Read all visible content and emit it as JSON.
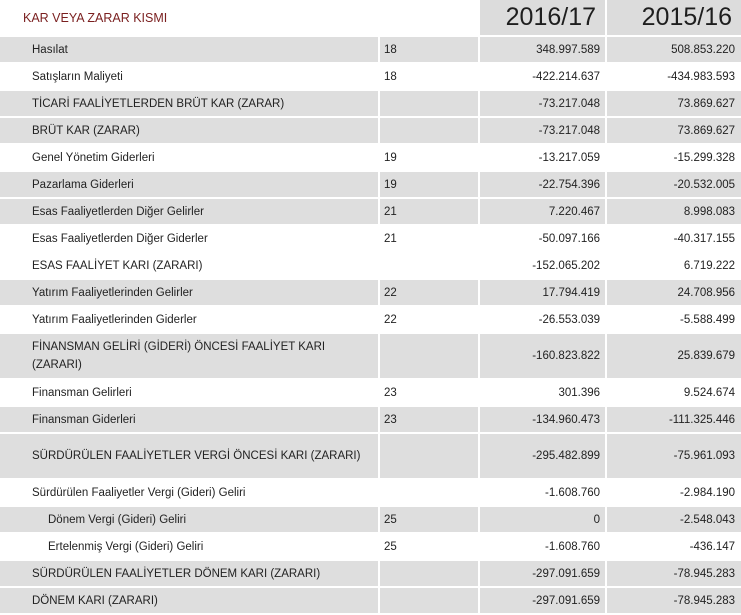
{
  "title": "KAR VEYA ZARAR KISMI",
  "columns": [
    "2016/17",
    "2015/16"
  ],
  "rows": [
    {
      "label": "Hasılat",
      "note": "18",
      "v2016": "348.997.589",
      "v2015": "508.853.220"
    },
    {
      "label": "Satışların Maliyeti",
      "note": "18",
      "v2016": "-422.214.637",
      "v2015": "-434.983.593"
    },
    {
      "label": "TİCARİ FAALİYETLERDEN BRÜT KAR (ZARAR)",
      "note": "",
      "v2016": "-73.217.048",
      "v2015": "73.869.627"
    },
    {
      "label": "BRÜT KAR (ZARAR)",
      "note": "",
      "v2016": "-73.217.048",
      "v2015": "73.869.627"
    },
    {
      "label": "Genel Yönetim Giderleri",
      "note": "19",
      "v2016": "-13.217.059",
      "v2015": "-15.299.328"
    },
    {
      "label": "Pazarlama Giderleri",
      "note": "19",
      "v2016": "-22.754.396",
      "v2015": "-20.532.005"
    },
    {
      "label": "Esas Faaliyetlerden Diğer Gelirler",
      "note": "21",
      "v2016": "7.220.467",
      "v2015": "8.998.083"
    },
    {
      "label": "Esas Faaliyetlerden Diğer Giderler",
      "note": "21",
      "v2016": "-50.097.166",
      "v2015": "-40.317.155"
    },
    {
      "label": "ESAS FAALİYET KARI (ZARARI)",
      "note": "",
      "v2016": "-152.065.202",
      "v2015": "6.719.222"
    },
    {
      "label": "Yatırım Faaliyetlerinden Gelirler",
      "note": "22",
      "v2016": "17.794.419",
      "v2015": "24.708.956"
    },
    {
      "label": "Yatırım Faaliyetlerinden Giderler",
      "note": "22",
      "v2016": "-26.553.039",
      "v2015": "-5.588.499"
    },
    {
      "label": "FİNANSMAN GELİRİ (GİDERİ) ÖNCESİ FAALİYET KARI (ZARARI)",
      "note": "",
      "v2016": "-160.823.822",
      "v2015": "25.839.679"
    },
    {
      "label": "Finansman Gelirleri",
      "note": "23",
      "v2016": "301.396",
      "v2015": "9.524.674"
    },
    {
      "label": "Finansman Giderleri",
      "note": "23",
      "v2016": "-134.960.473",
      "v2015": "-111.325.446"
    },
    {
      "label": "SÜRDÜRÜLEN FAALİYETLER VERGİ ÖNCESİ KARI (ZARARI)",
      "note": "",
      "v2016": "-295.482.899",
      "v2015": "-75.961.093"
    },
    {
      "label": "Sürdürülen Faaliyetler Vergi (Gideri) Geliri",
      "note": "",
      "v2016": "-1.608.760",
      "v2015": "-2.984.190"
    },
    {
      "label": "Dönem Vergi (Gideri) Geliri",
      "note": "25",
      "v2016": "0",
      "v2015": "-2.548.043"
    },
    {
      "label": "Ertelenmiş Vergi (Gideri) Geliri",
      "note": "25",
      "v2016": "-1.608.760",
      "v2015": "-436.147"
    },
    {
      "label": "SÜRDÜRÜLEN FAALİYETLER DÖNEM KARI (ZARARI)",
      "note": "",
      "v2016": "-297.091.659",
      "v2015": "-78.945.283"
    },
    {
      "label": "DÖNEM KARI (ZARARI)",
      "note": "",
      "v2016": "-297.091.659",
      "v2015": "-78.945.283"
    }
  ]
}
